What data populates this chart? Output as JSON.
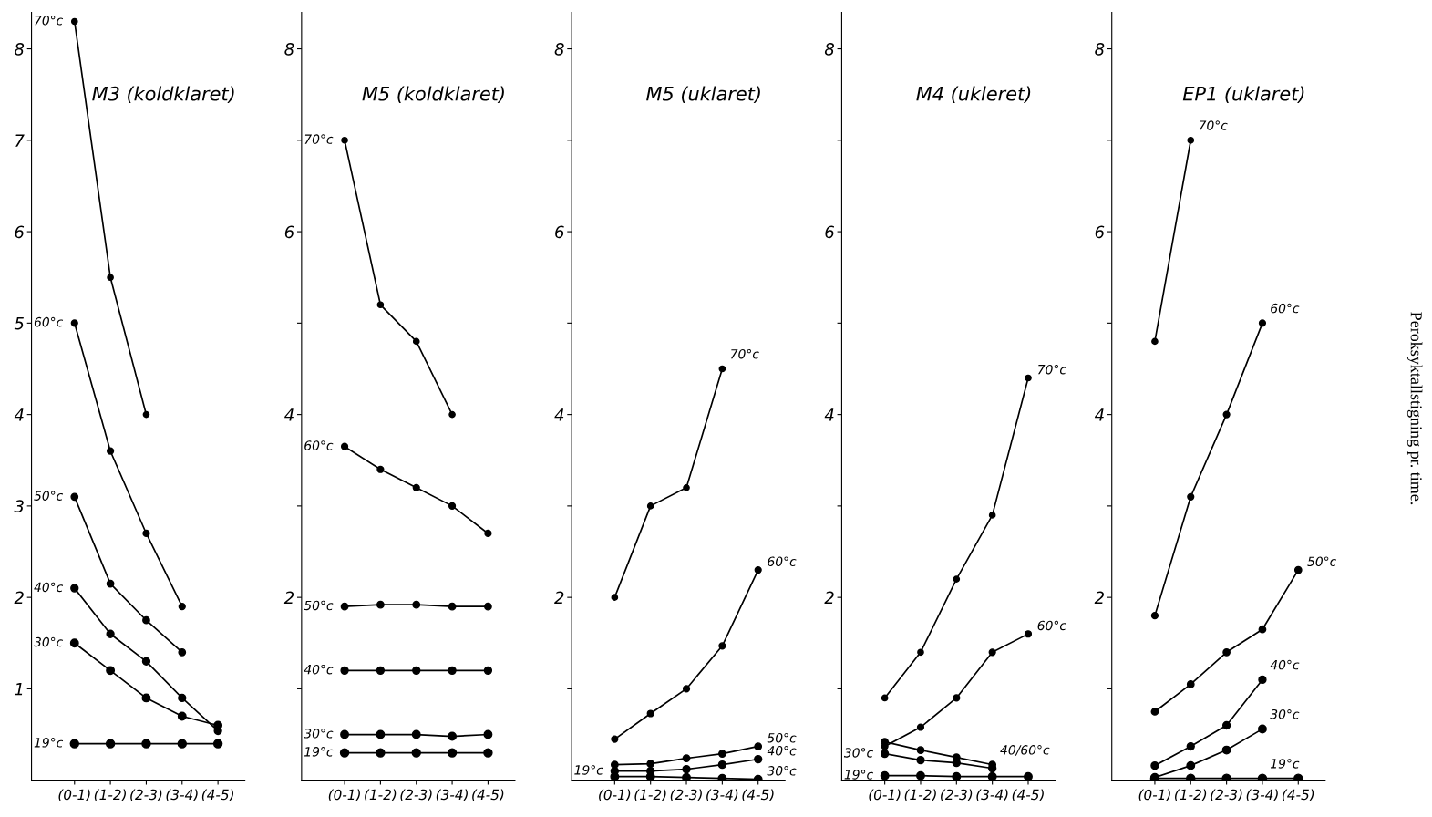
{
  "chart_data": [
    {
      "type": "line",
      "title": "M3 (koldklaret)",
      "categories": [
        "(0-1)",
        "(1-2)",
        "(2-3)",
        "(3-4)",
        "(4-5)"
      ],
      "ylim": [
        0,
        8.4
      ],
      "yticks": [
        1,
        2,
        3,
        4,
        5,
        6,
        7,
        8
      ],
      "marker": "circle",
      "grid": false,
      "series": [
        {
          "color": "#000000",
          "values": [
            8.3,
            5.5,
            4.0,
            null,
            null
          ]
        },
        {
          "color": "#000000",
          "values": [
            5.0,
            3.6,
            2.7,
            1.9,
            null
          ]
        },
        {
          "color": "#000000",
          "values": [
            3.1,
            2.15,
            1.75,
            1.4,
            null
          ]
        },
        {
          "color": "#000000",
          "values": [
            2.1,
            1.6,
            1.3,
            0.9,
            0.54
          ]
        },
        {
          "color": "#000000",
          "values": [
            1.5,
            1.2,
            0.9,
            0.7,
            0.6
          ]
        },
        {
          "color": "#000000",
          "values": [
            0.4,
            0.4,
            0.4,
            0.4,
            0.4
          ]
        }
      ],
      "annotations": [
        {
          "text": "70°c",
          "x": "(0-1)",
          "y": 8.3
        },
        {
          "text": "60°c",
          "x": "(0-1)",
          "y": 5.0
        },
        {
          "text": "50°c",
          "x": "(0-1)",
          "y": 3.1
        },
        {
          "text": "40°c",
          "x": "(0-1)",
          "y": 2.1
        },
        {
          "text": "30°c",
          "x": "(0-1)",
          "y": 1.5
        },
        {
          "text": "19°c",
          "x": "(0-1)",
          "y": 0.4
        }
      ]
    },
    {
      "type": "line",
      "title": "M5 (koldklaret)",
      "categories": [
        "(0-1)",
        "(1-2)",
        "(2-3)",
        "(3-4)",
        "(4-5)"
      ],
      "ylim": [
        0,
        8.4
      ],
      "yticks": [
        {
          "value": 1,
          "label": null
        },
        2,
        {
          "value": 3,
          "label": null
        },
        4,
        {
          "value": 5,
          "label": null
        },
        6,
        {
          "value": 7,
          "label": null
        },
        8
      ],
      "marker": "circle",
      "grid": false,
      "series": [
        {
          "color": "#000000",
          "values": [
            7.0,
            5.2,
            4.8,
            4.0,
            null
          ]
        },
        {
          "color": "#000000",
          "values": [
            3.65,
            3.4,
            3.2,
            3.0,
            2.7
          ]
        },
        {
          "color": "#000000",
          "values": [
            1.9,
            1.92,
            1.92,
            1.9,
            1.9
          ]
        },
        {
          "color": "#000000",
          "values": [
            1.2,
            1.2,
            1.2,
            1.2,
            1.2
          ]
        },
        {
          "color": "#000000",
          "values": [
            0.5,
            0.5,
            0.5,
            0.48,
            0.5
          ]
        },
        {
          "color": "#000000",
          "values": [
            0.3,
            0.3,
            0.3,
            0.3,
            0.3
          ]
        }
      ],
      "annotations": [
        {
          "text": "70°c",
          "x": "(0-1)",
          "y": 7.0
        },
        {
          "text": "60°c",
          "x": "(0-1)",
          "y": 3.65
        },
        {
          "text": "50°c",
          "x": "(0-1)",
          "y": 1.9
        },
        {
          "text": "40°c",
          "x": "(0-1)",
          "y": 1.2
        },
        {
          "text": "30°c",
          "x": "(0-1)",
          "y": 0.5
        },
        {
          "text": "19°c",
          "x": "(0-1)",
          "y": 0.3
        }
      ]
    },
    {
      "type": "line",
      "title": "M5 (uklaret)",
      "categories": [
        "(0-1)",
        "(1-2)",
        "(2-3)",
        "(3-4)",
        "(4-5)"
      ],
      "ylim": [
        0,
        8.4
      ],
      "yticks": [
        {
          "value": 1,
          "label": null
        },
        2,
        {
          "value": 3,
          "label": null
        },
        4,
        {
          "value": 5,
          "label": null
        },
        6,
        {
          "value": 7,
          "label": null
        },
        8
      ],
      "marker": "circle",
      "grid": false,
      "series": [
        {
          "color": "#000000",
          "values": [
            2.0,
            3.0,
            3.2,
            4.5,
            null
          ]
        },
        {
          "color": "#000000",
          "values": [
            0.45,
            0.73,
            1.0,
            1.47,
            2.3
          ]
        },
        {
          "color": "#000000",
          "values": [
            0.17,
            0.18,
            0.24,
            0.29,
            0.37
          ]
        },
        {
          "color": "#000000",
          "values": [
            0.1,
            0.1,
            0.12,
            0.17,
            0.23
          ]
        },
        {
          "color": "#000000",
          "values": [
            0.04,
            0.04,
            0.03,
            0.02,
            0.01
          ]
        }
      ],
      "annotations": [
        {
          "text": "70°c",
          "x": "(3-4)",
          "y": 4.5
        },
        {
          "text": "60°c",
          "x": "(4-5)",
          "y": 2.3
        },
        {
          "text": "50°c",
          "x": "(4-5)",
          "y": 0.37
        },
        {
          "text": "40°c",
          "x": "(4-5)",
          "y": 0.23
        },
        {
          "text": "30°c",
          "x": "(4-5)",
          "y": 0.01
        },
        {
          "text": "19°c",
          "x": "(0-1)",
          "y": 0.1
        }
      ]
    },
    {
      "type": "line",
      "title": "M4 (ukleret)",
      "categories": [
        "(0-1)",
        "(1-2)",
        "(2-3)",
        "(3-4)",
        "(4-5)"
      ],
      "ylim": [
        0,
        8.4
      ],
      "yticks": [
        {
          "value": 1,
          "label": null
        },
        2,
        {
          "value": 3,
          "label": null
        },
        4,
        {
          "value": 5,
          "label": null
        },
        6,
        {
          "value": 7,
          "label": null
        },
        8
      ],
      "marker": "circle",
      "grid": false,
      "series": [
        {
          "color": "#000000",
          "values": [
            0.9,
            1.4,
            2.2,
            2.9,
            4.4
          ]
        },
        {
          "color": "#000000",
          "values": [
            0.37,
            0.58,
            0.9,
            1.4,
            1.6
          ]
        },
        {
          "color": "#000000",
          "values": [
            0.42,
            0.33,
            0.25,
            0.17,
            null
          ]
        },
        {
          "color": "#000000",
          "values": [
            0.29,
            0.22,
            0.19,
            0.13,
            null
          ]
        },
        {
          "color": "#000000",
          "values": [
            0.05,
            0.05,
            0.04,
            0.04,
            0.04
          ]
        }
      ],
      "annotations": [
        {
          "text": "70°c",
          "x": "(4-5)",
          "y": 4.4
        },
        {
          "text": "60°c",
          "x": "(4-5)",
          "y": 1.6
        },
        {
          "text": "40/60°c",
          "x": "(3-4)",
          "y": 0.17
        },
        {
          "text": "30°c",
          "x": "(0-1)",
          "y": 0.29
        },
        {
          "text": "19°c",
          "x": "(0-1)",
          "y": 0.05
        }
      ]
    },
    {
      "type": "line",
      "title": "EP1 (uklaret)",
      "ylabel": "Peroksyktallstigning pr. time.",
      "categories": [
        "(0-1)",
        "(1-2)",
        "(2-3)",
        "(3-4)",
        "(4-5)"
      ],
      "ylim": [
        0,
        8.4
      ],
      "yticks": [
        {
          "value": 1,
          "label": null
        },
        2,
        {
          "value": 3,
          "label": null
        },
        4,
        {
          "value": 5,
          "label": null
        },
        6,
        {
          "value": 7,
          "label": null
        },
        8
      ],
      "marker": "circle",
      "grid": false,
      "series": [
        {
          "color": "#000000",
          "values": [
            4.8,
            7.0,
            null,
            null,
            null
          ]
        },
        {
          "color": "#000000",
          "values": [
            1.8,
            3.1,
            4.0,
            5.0,
            null
          ]
        },
        {
          "color": "#000000",
          "values": [
            0.75,
            1.05,
            1.4,
            1.65,
            2.3
          ]
        },
        {
          "color": "#000000",
          "values": [
            0.16,
            0.37,
            0.6,
            1.1,
            null
          ]
        },
        {
          "color": "#000000",
          "values": [
            0.03,
            0.16,
            0.33,
            0.56,
            null
          ]
        },
        {
          "color": "#000000",
          "values": [
            0.02,
            0.02,
            0.02,
            0.02,
            0.02
          ]
        }
      ],
      "annotations": [
        {
          "text": "70°c",
          "x": "(1-2)",
          "y": 7.0
        },
        {
          "text": "60°c",
          "x": "(3-4)",
          "y": 5.0
        },
        {
          "text": "50°c",
          "x": "(4-5)",
          "y": 2.3
        },
        {
          "text": "40°c",
          "x": "(3-4)",
          "y": 1.1
        },
        {
          "text": "30°c",
          "x": "(3-4)",
          "y": 0.56
        },
        {
          "text": "19°c",
          "x": "(3-4)",
          "y": 0.02
        }
      ]
    }
  ]
}
